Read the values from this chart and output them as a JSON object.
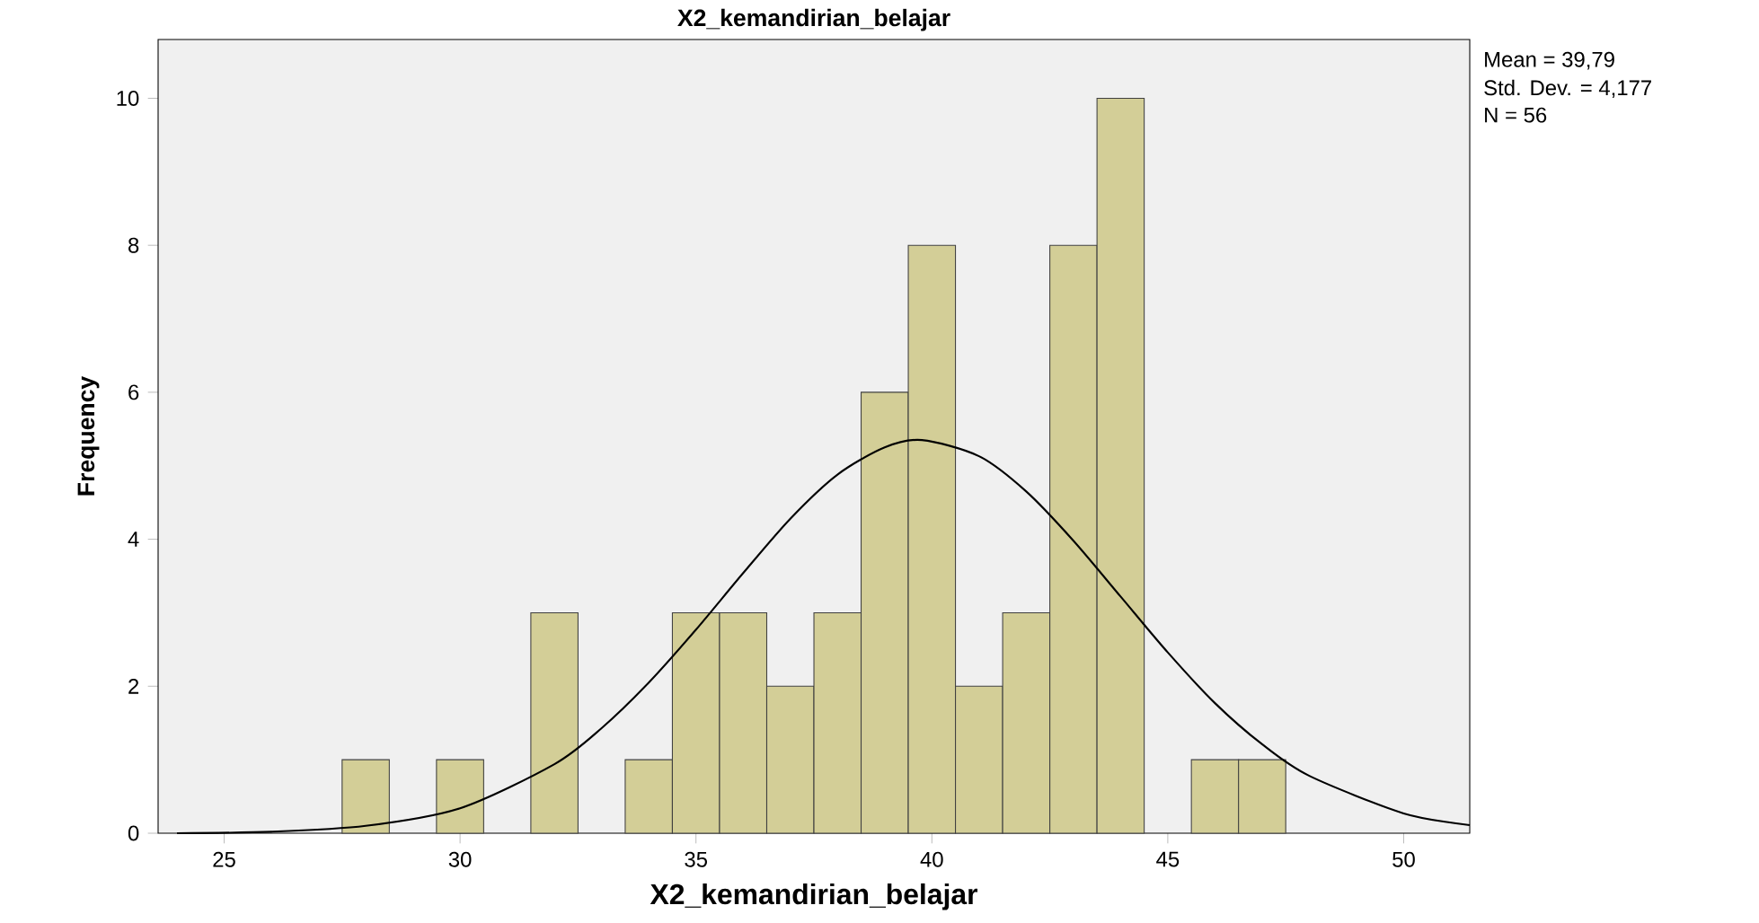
{
  "chart_data": {
    "type": "histogram",
    "title": "X2_kemandirian_belajar",
    "xlabel": "X2_kemandirian_belajar",
    "ylabel": "Frequency",
    "bins": [
      27.5,
      28.5,
      29.5,
      30.5,
      31.5,
      32.5,
      33.5,
      34.5,
      35.5,
      36.5,
      37.5,
      38.5,
      39.5,
      40.5,
      41.5,
      42.5,
      43.5,
      44.5,
      45.5,
      46.5,
      47.5
    ],
    "values": [
      1,
      0,
      1,
      0,
      3,
      0,
      1,
      3,
      3,
      2,
      3,
      6,
      8,
      2,
      3,
      8,
      10,
      0,
      1,
      1
    ],
    "color": "#d3ce97",
    "series": [
      {
        "type": "line",
        "color": "#000000",
        "x": [
          24,
          26,
          28,
          30,
          32,
          33,
          34,
          35,
          36,
          37,
          38,
          39,
          39.79,
          41,
          42,
          43,
          44,
          45,
          46,
          47,
          48,
          50,
          51.4
        ],
        "values": [
          0,
          0.02,
          0.1,
          0.34,
          0.94,
          1.43,
          2.05,
          2.77,
          3.54,
          4.28,
          4.88,
          5.25,
          5.35,
          5.13,
          4.65,
          3.98,
          3.22,
          2.46,
          1.77,
          1.21,
          0.78,
          0.27,
          0.11
        ]
      }
    ],
    "xlim": [
      23.6,
      51.4
    ],
    "ylim": [
      0,
      10.8
    ],
    "xticks": [
      25,
      30,
      35,
      40,
      45,
      50
    ],
    "yticks": [
      0,
      2,
      4,
      6,
      8,
      10
    ],
    "grid": false,
    "annotations": [
      "Mean = 39,79",
      "Std. Dev. = 4,177",
      "N = 56"
    ]
  }
}
